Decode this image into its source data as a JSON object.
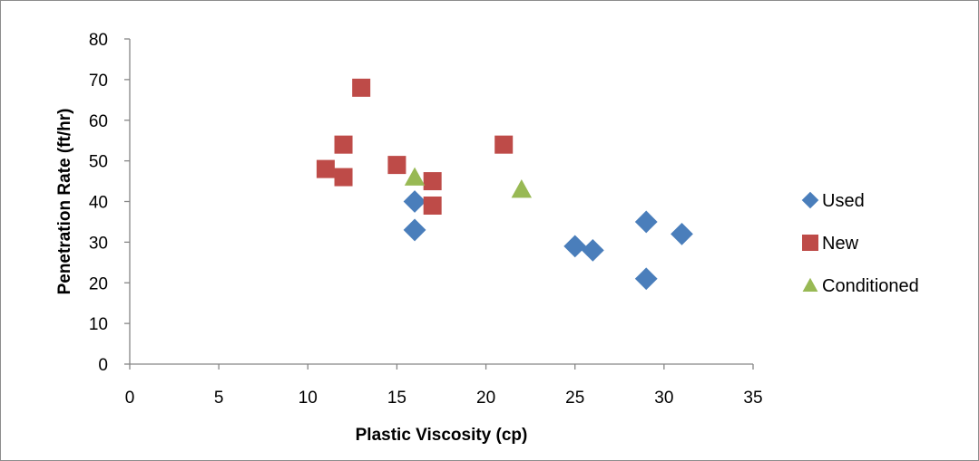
{
  "chart_data": {
    "type": "scatter",
    "title": "",
    "xlabel": "Plastic Viscosity (cp)",
    "ylabel": "Penetration Rate (ft/hr)",
    "xlim": [
      0,
      35
    ],
    "ylim": [
      0,
      80
    ],
    "x_ticks": [
      0,
      5,
      10,
      15,
      20,
      25,
      30,
      35
    ],
    "y_ticks": [
      0,
      10,
      20,
      30,
      40,
      50,
      60,
      70,
      80
    ],
    "grid": false,
    "legend_position": "right",
    "series": [
      {
        "name": "Used",
        "marker": "diamond",
        "color": "#4a7ebb",
        "points": [
          {
            "x": 16,
            "y": 40
          },
          {
            "x": 16,
            "y": 33
          },
          {
            "x": 25,
            "y": 29
          },
          {
            "x": 26,
            "y": 28
          },
          {
            "x": 29,
            "y": 35
          },
          {
            "x": 29,
            "y": 21
          },
          {
            "x": 31,
            "y": 32
          }
        ]
      },
      {
        "name": "New",
        "marker": "square",
        "color": "#be4b48",
        "points": [
          {
            "x": 11,
            "y": 48
          },
          {
            "x": 12,
            "y": 54
          },
          {
            "x": 12,
            "y": 46
          },
          {
            "x": 13,
            "y": 68
          },
          {
            "x": 15,
            "y": 49
          },
          {
            "x": 17,
            "y": 45
          },
          {
            "x": 17,
            "y": 39
          },
          {
            "x": 21,
            "y": 54
          }
        ]
      },
      {
        "name": "Conditioned",
        "marker": "triangle",
        "color": "#98b954",
        "points": [
          {
            "x": 16,
            "y": 46
          },
          {
            "x": 22,
            "y": 43
          }
        ]
      }
    ]
  }
}
